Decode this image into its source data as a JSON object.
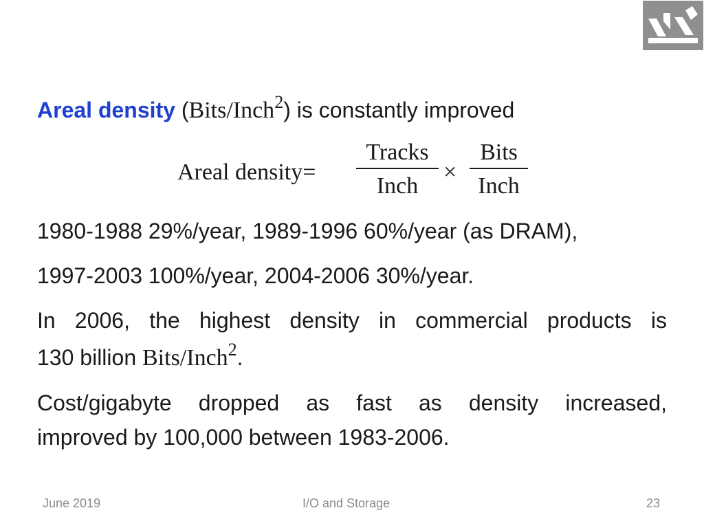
{
  "logo": {
    "name": "university-logo"
  },
  "title_line": {
    "areal": "Areal density",
    "open": "(",
    "unit": "Bits/Inch",
    "exp": "2",
    "rest": ") is constantly improved"
  },
  "formula": {
    "lhs": "Areal density=",
    "num1": "Tracks",
    "den1": "Inch",
    "times": "×",
    "num2": "Bits",
    "den2": "Inch"
  },
  "lines": {
    "l1980": "1980-1988 29%/year, 1989-1996 60%/year (as DRAM),",
    "l1997": "1997-2003 100%/year, 2004-2006 30%/year.",
    "l2006a": "In 2006, the highest density in commercial products is",
    "l2006b_pre": "130 billion ",
    "l2006b_unit": "Bits/Inch",
    "l2006b_exp": "2",
    "l2006b_post": ".",
    "cost": "Cost/gigabyte dropped as fast as density increased,",
    "improved": "improved by 100,000 between 1983-2006."
  },
  "footer": {
    "date": "June 2019",
    "topic": "I/O and Storage",
    "page": "23"
  }
}
